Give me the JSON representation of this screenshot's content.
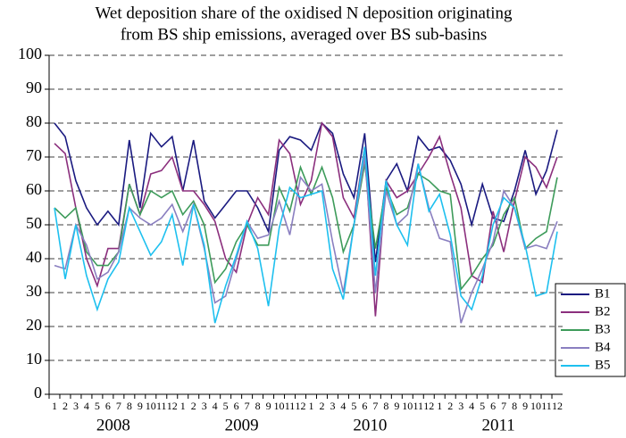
{
  "chart_data": {
    "type": "line",
    "title": [
      "Wet deposition share of the oxidised N deposition originating",
      "from BS ship emissions, averaged over  BS sub-basins"
    ],
    "categories": [
      "1",
      "2",
      "3",
      "4",
      "5",
      "6",
      "7",
      "8",
      "9",
      "10",
      "11",
      "12",
      "1",
      "2",
      "3",
      "4",
      "5",
      "6",
      "7",
      "8",
      "9",
      "10",
      "11",
      "12",
      "1",
      "2",
      "3",
      "4",
      "5",
      "6",
      "7",
      "8",
      "9",
      "10",
      "11",
      "12",
      "1",
      "2",
      "3",
      "4",
      "5",
      "6",
      "7",
      "8",
      "9",
      "10",
      "11",
      "12"
    ],
    "year_labels": [
      "2008",
      "2009",
      "2010",
      "2011"
    ],
    "ylim": [
      0,
      100
    ],
    "yticks": [
      0,
      10,
      20,
      30,
      40,
      50,
      60,
      70,
      80,
      90,
      100
    ],
    "grid": true,
    "legend": "right",
    "series": [
      {
        "name": "B1",
        "color": "#1a1a80",
        "values": [
          80,
          76,
          63,
          55,
          50,
          54,
          50,
          75,
          55,
          77,
          73,
          76,
          60,
          75,
          57,
          52,
          56,
          60,
          60,
          55,
          48,
          72,
          76,
          75,
          72,
          80,
          77,
          65,
          58,
          77,
          39,
          63,
          68,
          60,
          76,
          72,
          73,
          69,
          62,
          50,
          62,
          52,
          51,
          60,
          72,
          59,
          66,
          78
        ]
      },
      {
        "name": "B2",
        "color": "#8b2f7d",
        "values": [
          74,
          71,
          55,
          40,
          32,
          43,
          43,
          62,
          53,
          65,
          66,
          70,
          60,
          60,
          56,
          51,
          40,
          36,
          50,
          58,
          53,
          75,
          71,
          56,
          63,
          80,
          76,
          58,
          52,
          73,
          23,
          63,
          58,
          60,
          65,
          70,
          76,
          65,
          55,
          35,
          33,
          54,
          42,
          57,
          70,
          67,
          61,
          70
        ]
      },
      {
        "name": "B3",
        "color": "#3d9b5a",
        "values": [
          55,
          52,
          55,
          42,
          38,
          38,
          42,
          62,
          53,
          60,
          58,
          60,
          53,
          57,
          50,
          33,
          37,
          45,
          50,
          44,
          44,
          61,
          54,
          67,
          59,
          67,
          58,
          42,
          50,
          68,
          43,
          61,
          53,
          55,
          65,
          63,
          60,
          59,
          31,
          35,
          40,
          44,
          53,
          58,
          43,
          46,
          48,
          64
        ]
      },
      {
        "name": "B4",
        "color": "#8a7fc0",
        "values": [
          38,
          37,
          50,
          44,
          34,
          36,
          42,
          55,
          52,
          50,
          52,
          56,
          48,
          56,
          43,
          27,
          29,
          40,
          51,
          46,
          47,
          57,
          47,
          64,
          60,
          62,
          45,
          30,
          50,
          70,
          30,
          60,
          50,
          53,
          68,
          55,
          46,
          45,
          21,
          30,
          37,
          45,
          60,
          55,
          43,
          44,
          43,
          51
        ]
      },
      {
        "name": "B5",
        "color": "#1ec0ef",
        "values": [
          55,
          34,
          50,
          35,
          25,
          34,
          39,
          55,
          48,
          41,
          45,
          53,
          38,
          56,
          44,
          21,
          32,
          41,
          51,
          43,
          26,
          49,
          61,
          58,
          59,
          60,
          37,
          28,
          50,
          73,
          35,
          63,
          50,
          44,
          68,
          54,
          59,
          47,
          29,
          25,
          35,
          50,
          58,
          55,
          44,
          29,
          30,
          48
        ]
      }
    ]
  }
}
